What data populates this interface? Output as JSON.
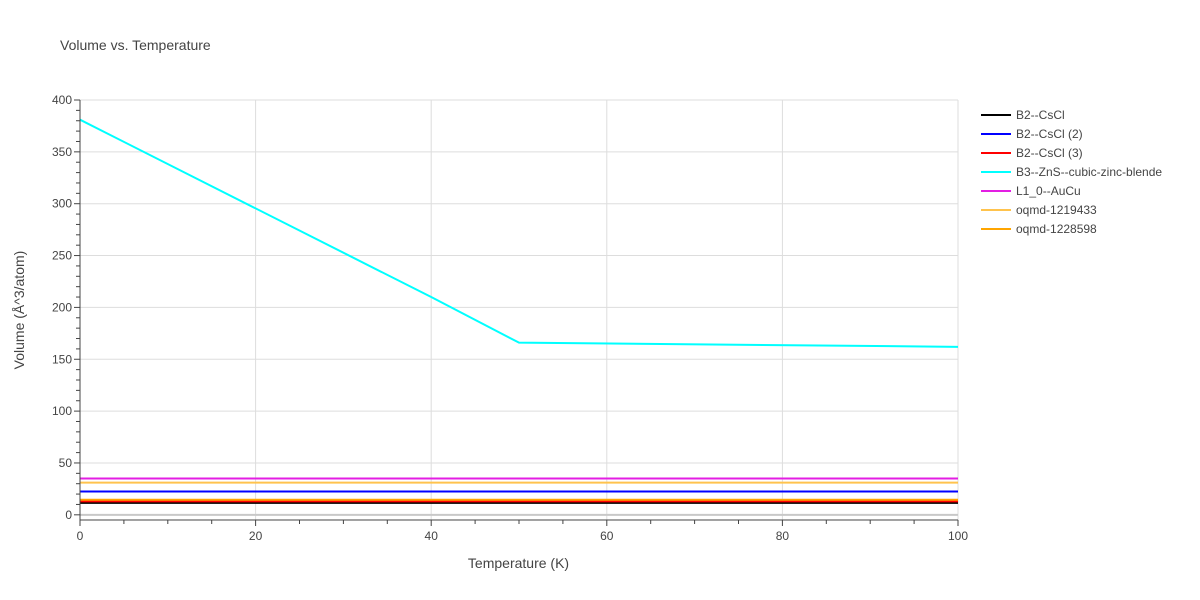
{
  "chart_data": {
    "type": "line",
    "title": "Volume vs. Temperature",
    "xlabel": "Temperature (K)",
    "ylabel": "Volume (Å^3/atom)",
    "xlim": [
      0,
      100
    ],
    "ylim": [
      -5,
      400
    ],
    "xticks": [
      0,
      20,
      40,
      60,
      80,
      100
    ],
    "yticks": [
      0,
      50,
      100,
      150,
      200,
      250,
      300,
      350,
      400
    ],
    "grid": true,
    "legend_position": "right",
    "series": [
      {
        "name": "B2--CsCl",
        "color": "#000000",
        "x": [
          0,
          100
        ],
        "y": [
          11.5,
          11.5
        ]
      },
      {
        "name": "B2--CsCl (2)",
        "color": "#0000ff",
        "x": [
          0,
          100
        ],
        "y": [
          22.5,
          22.5
        ]
      },
      {
        "name": "B2--CsCl (3)",
        "color": "#ff0000",
        "x": [
          0,
          100
        ],
        "y": [
          13.0,
          13.0
        ]
      },
      {
        "name": "B3--ZnS--cubic-zinc-blende",
        "color": "#00ffff",
        "x": [
          0,
          40,
          50,
          100
        ],
        "y": [
          381,
          210,
          166,
          162
        ]
      },
      {
        "name": "L1_0--AuCu",
        "color": "#e31ee3",
        "x": [
          0,
          100
        ],
        "y": [
          35.0,
          35.0
        ]
      },
      {
        "name": "oqmd-1219433",
        "color": "#ffc34d",
        "x": [
          0,
          100
        ],
        "y": [
          31.0,
          31.0
        ]
      },
      {
        "name": "oqmd-1228598",
        "color": "#ffa500",
        "x": [
          0,
          100
        ],
        "y": [
          14.5,
          14.5
        ]
      }
    ]
  }
}
